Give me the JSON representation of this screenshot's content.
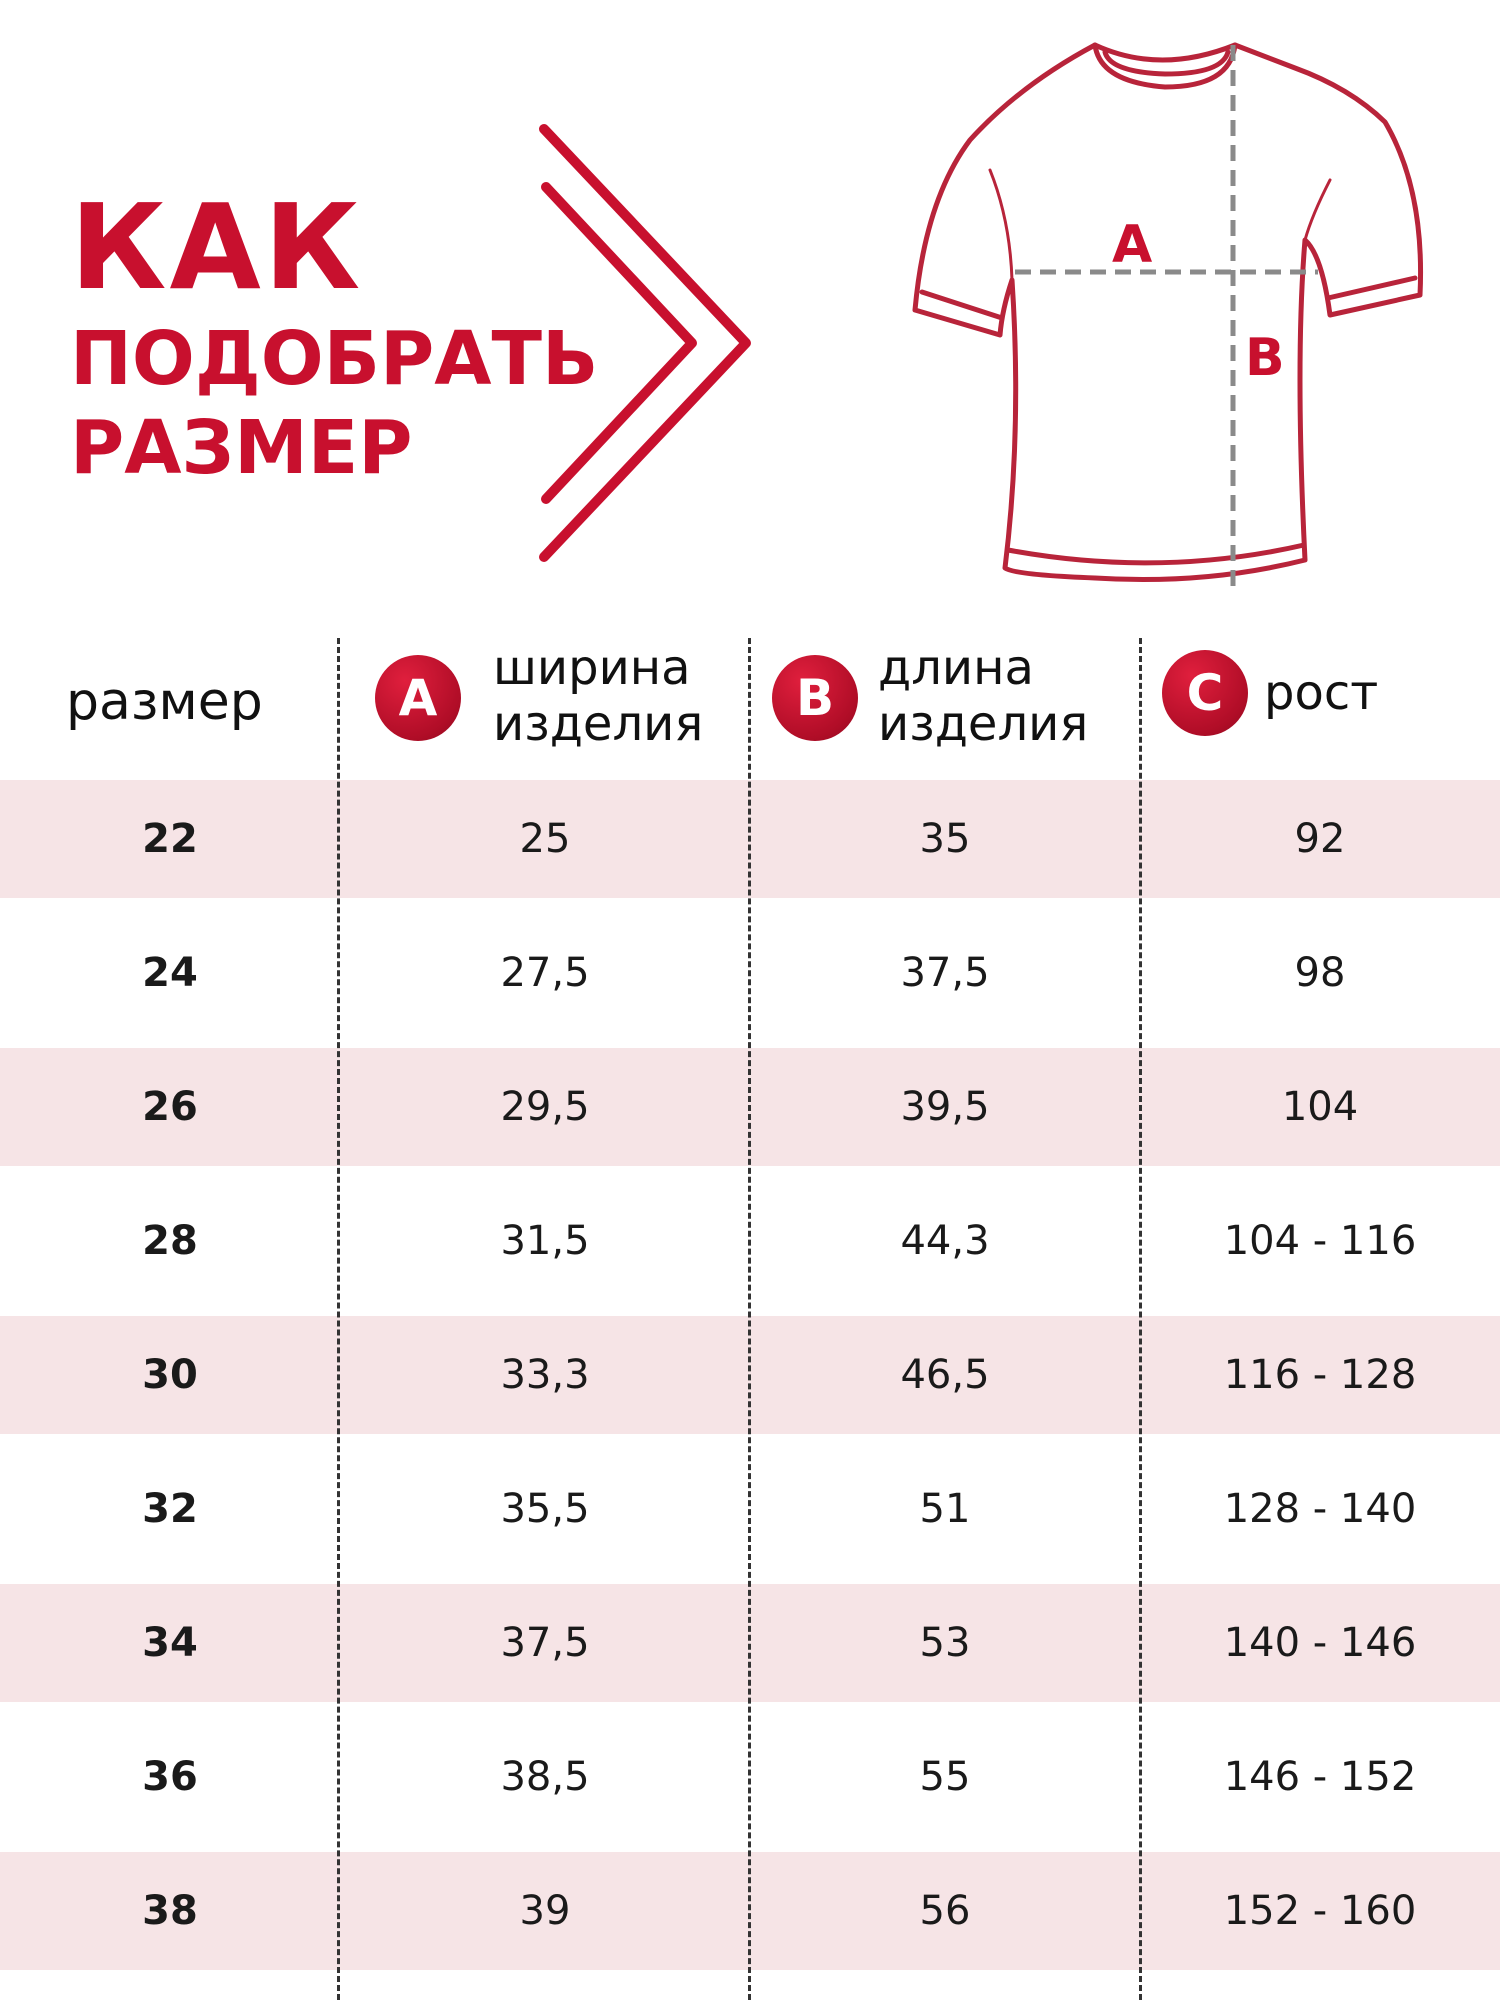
{
  "title": {
    "line1": "КАК",
    "line2": "ПОДОБРАТЬ",
    "line3": "РАЗМЕР"
  },
  "diagram": {
    "label_a": "А",
    "label_b": "В"
  },
  "colors": {
    "accent": "#c8102e",
    "row_shade": "#f6e4e6",
    "dash": "#8a8a8a"
  },
  "header": {
    "size": "размер",
    "a": {
      "badge": "A",
      "label": "ширина\nизделия"
    },
    "b": {
      "badge": "B",
      "label": "длина\nизделия"
    },
    "c": {
      "badge": "C",
      "label": "рост"
    }
  },
  "rows": [
    {
      "size": "22",
      "a": "25",
      "b": "35",
      "c": "92"
    },
    {
      "size": "24",
      "a": "27,5",
      "b": "37,5",
      "c": "98"
    },
    {
      "size": "26",
      "a": "29,5",
      "b": "39,5",
      "c": "104"
    },
    {
      "size": "28",
      "a": "31,5",
      "b": "44,3",
      "c": "104 - 116"
    },
    {
      "size": "30",
      "a": "33,3",
      "b": "46,5",
      "c": "116 - 128"
    },
    {
      "size": "32",
      "a": "35,5",
      "b": "51",
      "c": "128 - 140"
    },
    {
      "size": "34",
      "a": "37,5",
      "b": "53",
      "c": "140 - 146"
    },
    {
      "size": "36",
      "a": "38,5",
      "b": "55",
      "c": "146 - 152"
    },
    {
      "size": "38",
      "a": "39",
      "b": "56",
      "c": "152 - 160"
    }
  ]
}
